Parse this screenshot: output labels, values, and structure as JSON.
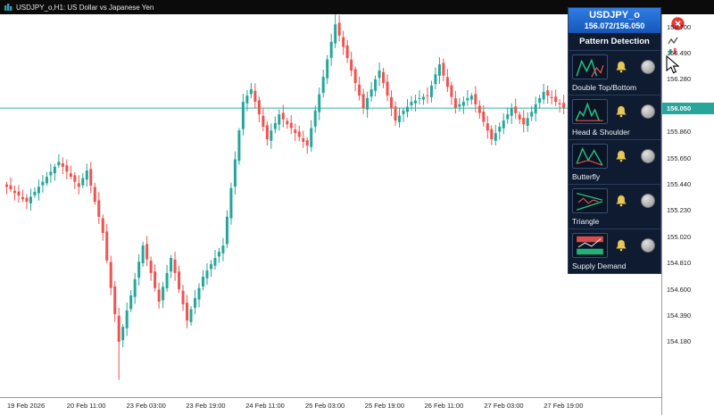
{
  "chrome": {
    "symbol_header": "USDJPY_o,H1: US Dollar vs Japanese Yen"
  },
  "panel": {
    "symbol": "USDJPY_o",
    "quote": "156.072/156.050",
    "title": "Pattern Detection",
    "patterns": [
      {
        "label": "Double Top/Bottom",
        "icon": "double-top-bottom-icon",
        "alert_enabled": false
      },
      {
        "label": "Head & Shoulder",
        "icon": "head-shoulder-icon",
        "alert_enabled": false
      },
      {
        "label": "Butterfly",
        "icon": "butterfly-icon",
        "alert_enabled": false
      },
      {
        "label": "Triangle",
        "icon": "triangle-icon",
        "alert_enabled": false
      },
      {
        "label": "Supply Demand",
        "icon": "supply-demand-icon",
        "alert_enabled": false
      }
    ]
  },
  "price_axis": {
    "labels": [
      "156.700",
      "156.490",
      "156.280",
      "155.860",
      "155.650",
      "155.440",
      "155.230",
      "155.020",
      "154.810",
      "154.600",
      "154.390",
      "154.180"
    ],
    "current_badge": "156.050"
  },
  "time_axis": {
    "labels": [
      "19 Feb 2026",
      "20 Feb 11:00",
      "23 Feb 03:00",
      "23 Feb 19:00",
      "24 Feb 11:00",
      "25 Feb 03:00",
      "25 Feb 19:00",
      "26 Feb 11:00",
      "27 Feb 03:00",
      "27 Feb 19:00"
    ]
  },
  "colors": {
    "bull": "#26a69a",
    "bear": "#ef5350",
    "price_line": "#2fb3a8",
    "badge_bg": "#26a69a",
    "close_button": "#e53935",
    "bell": "#e8c85a"
  },
  "chart_data": {
    "type": "candlestick",
    "title": "USDJPY_o,H1: US Dollar vs Japanese Yen",
    "symbol": "USDJPY_o",
    "timeframe": "H1",
    "current_price": 156.05,
    "y_axis_range": [
      154.18,
      156.7
    ],
    "x_axis_labels": [
      "19 Feb 2026",
      "20 Feb 11:00",
      "23 Feb 03:00",
      "23 Feb 19:00",
      "24 Feb 11:00",
      "25 Feb 03:00",
      "25 Feb 19:00",
      "26 Feb 11:00",
      "27 Feb 03:00",
      "27 Feb 19:00"
    ],
    "closes": [
      155.42,
      155.4,
      155.37,
      155.35,
      155.32,
      155.3,
      155.34,
      155.38,
      155.42,
      155.46,
      155.5,
      155.54,
      155.58,
      155.62,
      155.58,
      155.54,
      155.5,
      155.46,
      155.42,
      155.49,
      155.55,
      155.43,
      155.3,
      155.18,
      155.05,
      154.83,
      154.61,
      154.4,
      154.18,
      154.3,
      154.43,
      154.55,
      154.68,
      154.82,
      154.95,
      154.84,
      154.73,
      154.61,
      154.5,
      154.62,
      154.73,
      154.85,
      154.73,
      154.6,
      154.48,
      154.35,
      154.44,
      154.53,
      154.61,
      154.7,
      154.75,
      154.8,
      154.85,
      154.9,
      154.95,
      155.18,
      155.41,
      155.64,
      155.87,
      156.1,
      156.15,
      156.2,
      156.1,
      156.0,
      155.9,
      155.8,
      155.87,
      155.93,
      156.0,
      155.96,
      155.92,
      155.89,
      155.85,
      155.82,
      155.78,
      155.75,
      155.89,
      156.03,
      156.16,
      156.3,
      156.44,
      156.58,
      156.72,
      156.63,
      156.54,
      156.45,
      156.35,
      156.25,
      156.15,
      156.05,
      156.13,
      156.2,
      156.28,
      156.35,
      156.25,
      156.15,
      156.05,
      155.95,
      155.99,
      156.03,
      156.06,
      156.1,
      156.11,
      156.13,
      156.14,
      156.15,
      156.23,
      156.32,
      156.4,
      156.31,
      156.22,
      156.14,
      156.05,
      156.08,
      156.1,
      156.13,
      156.15,
      156.08,
      156.01,
      155.94,
      155.87,
      155.8,
      155.85,
      155.9,
      155.95,
      156.0,
      156.05,
      156.01,
      155.96,
      155.92,
      155.97,
      156.02,
      156.08,
      156.13,
      156.18,
      156.15,
      156.13,
      156.1,
      156.08,
      156.05
    ]
  }
}
